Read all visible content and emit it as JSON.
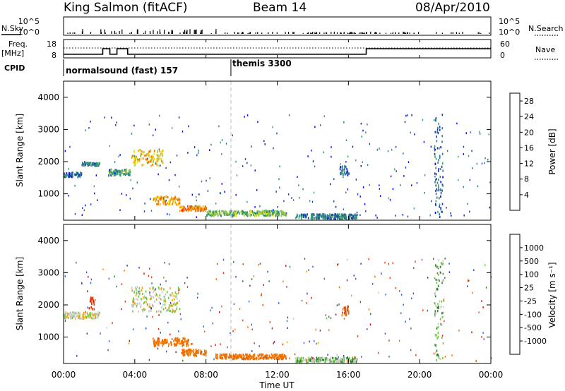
{
  "header": {
    "station": "King Salmon (fitACF)",
    "beam": "Beam 14",
    "date": "08/Apr/2010"
  },
  "panels": {
    "nsky": {
      "label": "N.Sky",
      "right_label": "N.Search",
      "ticks_left": [
        "10^5",
        "10^0"
      ],
      "ticks_right": [
        "10^5",
        "10^0"
      ]
    },
    "freq": {
      "label_line1": "Freq.",
      "label_line2": "[MHz]",
      "ticks_left": [
        "18",
        "8"
      ],
      "right_label": "Nave",
      "ticks_right": [
        "60",
        "0"
      ]
    },
    "cpid": {
      "label": "CPID",
      "modes": [
        {
          "name": "normalsound (fast) 157"
        },
        {
          "name": "themis 3300"
        }
      ]
    }
  },
  "power_colorbar": {
    "label": "Power [dB]",
    "ticks": [
      "28",
      "24",
      "20",
      "16",
      "12",
      "8",
      "4"
    ]
  },
  "velocity_colorbar": {
    "label": "Velocity [m s⁻¹]",
    "ticks": [
      "1000",
      "500",
      "100",
      "25",
      "-25",
      "-100",
      "-500",
      "-1000"
    ]
  },
  "colors": {
    "power_scale": [
      "#0000ff",
      "#1a3ca8",
      "#2d7a8f",
      "#36a06a",
      "#9ec83c",
      "#f2e000",
      "#f5a800",
      "#f07000",
      "#ee3a00",
      "#e80000"
    ],
    "velocity_scale": [
      "#1f3fbf",
      "#2f5fd8",
      "#2d7a2d",
      "#66cc33",
      "#c8c8c8",
      "#f5a000",
      "#ee7000",
      "#e83800",
      "#e00000"
    ]
  },
  "chart_data": [
    {
      "type": "heatmap",
      "title": "Power",
      "ylabel": "Slant Range [km]",
      "xlabel": "Time UT",
      "x_ticks": [
        "00:00",
        "04:00",
        "08:00",
        "12:00",
        "16:00",
        "20:00",
        "00:00"
      ],
      "y_ticks": [
        1000,
        2000,
        3000,
        4000
      ],
      "xlim_hours": [
        0,
        24
      ],
      "ylim_km": [
        180,
        4500
      ],
      "colorbar": {
        "label": "Power [dB]",
        "range": [
          0,
          30
        ]
      },
      "features": [
        {
          "t": [
            0.0,
            1.0
          ],
          "r": [
            1550,
            1700
          ],
          "value_db": 6
        },
        {
          "t": [
            1.0,
            2.0
          ],
          "r": [
            1900,
            2000
          ],
          "value_db": 8
        },
        {
          "t": [
            2.5,
            3.8
          ],
          "r": [
            1600,
            1800
          ],
          "value_db": 10
        },
        {
          "t": [
            3.8,
            5.6
          ],
          "r": [
            1900,
            2400
          ],
          "value_db": 18
        },
        {
          "t": [
            5.0,
            6.5
          ],
          "r": [
            700,
            950
          ],
          "value_db": 20
        },
        {
          "t": [
            6.5,
            8.0
          ],
          "r": [
            500,
            650
          ],
          "value_db": 22
        },
        {
          "t": [
            8.0,
            12.5
          ],
          "r": [
            350,
            500
          ],
          "value_db": 12
        },
        {
          "t": [
            13.0,
            16.5
          ],
          "r": [
            250,
            400
          ],
          "value_db": 8
        },
        {
          "t": [
            15.5,
            16.0
          ],
          "r": [
            1600,
            1900
          ],
          "value_db": 6
        },
        {
          "t": [
            20.8,
            21.3
          ],
          "r": [
            300,
            3500
          ],
          "value_db": 6
        }
      ]
    },
    {
      "type": "heatmap",
      "title": "Velocity",
      "ylabel": "Slant Range [km]",
      "xlabel": "Time UT",
      "x_ticks": [
        "00:00",
        "04:00",
        "08:00",
        "12:00",
        "16:00",
        "20:00",
        "00:00"
      ],
      "y_ticks": [
        1000,
        2000,
        3000,
        4000
      ],
      "xlim_hours": [
        0,
        24
      ],
      "ylim_km": [
        180,
        4500
      ],
      "colorbar": {
        "label": "Velocity [m s⁻¹]",
        "range": [
          -1000,
          1000
        ]
      },
      "features": [
        {
          "t": [
            0.0,
            2.0
          ],
          "r": [
            1600,
            1800
          ],
          "value_ms": 0
        },
        {
          "t": [
            1.4,
            1.7
          ],
          "r": [
            1900,
            2300
          ],
          "value_ms": -700
        },
        {
          "t": [
            3.8,
            6.5
          ],
          "r": [
            1800,
            2600
          ],
          "value_ms": 0
        },
        {
          "t": [
            5.0,
            7.0
          ],
          "r": [
            750,
            1000
          ],
          "value_ms": -150
        },
        {
          "t": [
            6.6,
            8.0
          ],
          "r": [
            450,
            650
          ],
          "value_ms": -120
        },
        {
          "t": [
            8.5,
            12.5
          ],
          "r": [
            350,
            500
          ],
          "value_ms": -200
        },
        {
          "t": [
            13.0,
            16.5
          ],
          "r": [
            250,
            400
          ],
          "value_ms": 40
        },
        {
          "t": [
            15.6,
            16.0
          ],
          "r": [
            1700,
            2000
          ],
          "value_ms": -300
        },
        {
          "t": [
            20.8,
            21.3
          ],
          "r": [
            300,
            3500
          ],
          "value_ms": 50
        }
      ]
    }
  ],
  "freq_line": {
    "segments": [
      {
        "t0": 0,
        "t1": 2.2,
        "mhz": 10
      },
      {
        "t0": 2.2,
        "t1": 2.6,
        "mhz": 13
      },
      {
        "t0": 2.6,
        "t1": 3.0,
        "mhz": 10
      },
      {
        "t0": 3.0,
        "t1": 3.6,
        "mhz": 13
      },
      {
        "t0": 3.6,
        "t1": 17.0,
        "mhz": 10
      },
      {
        "t0": 17.0,
        "t1": 24,
        "mhz": 13
      }
    ]
  },
  "cpid_switch_hours": 9.4
}
